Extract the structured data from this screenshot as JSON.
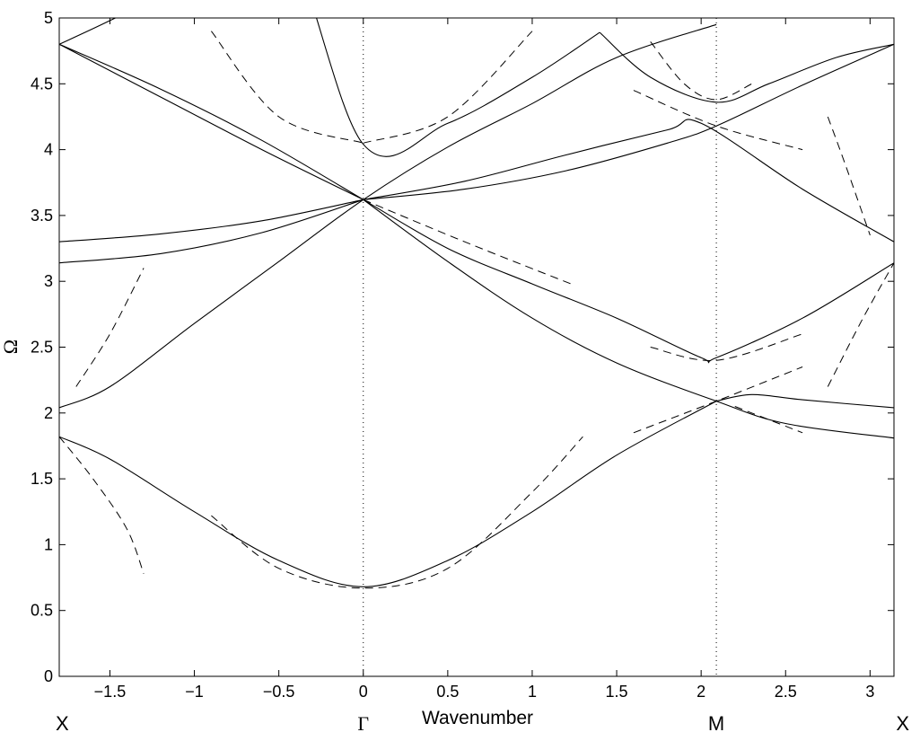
{
  "chart_data": {
    "type": "line",
    "title": "",
    "xlabel": "Wavenumber",
    "ylabel": "Ω",
    "xlim": [
      -1.8,
      3.1416
    ],
    "ylim": [
      0,
      5
    ],
    "grid": false,
    "x_ticks": [
      "−1.5",
      "−1",
      "−0.5",
      "0",
      "0.5",
      "1",
      "1.5",
      "2",
      "2.5",
      "3"
    ],
    "x_tick_values": [
      -1.5,
      -1,
      -0.5,
      0,
      0.5,
      1,
      1.5,
      2,
      2.5,
      3
    ],
    "y_ticks": [
      "0",
      "0.5",
      "1",
      "1.5",
      "2",
      "2.5",
      "3",
      "3.5",
      "4",
      "4.5",
      "5"
    ],
    "y_tick_values": [
      0,
      0.5,
      1,
      1.5,
      2,
      2.5,
      3,
      3.5,
      4,
      4.5,
      5
    ],
    "symmetry_points": [
      {
        "label": "X",
        "x": -1.8
      },
      {
        "label": "Γ",
        "x": 0
      },
      {
        "label": "M",
        "x": 2.09
      },
      {
        "label": "X",
        "x": 3.1416
      }
    ],
    "vertical_markers": [
      0,
      2.09
    ],
    "solid_bands": [
      {
        "x": [
          -1.8,
          -1.5,
          -1.0,
          -0.5,
          0,
          0.5,
          1.0,
          1.5,
          2.09
        ],
        "y": [
          1.82,
          1.65,
          1.25,
          0.88,
          0.68,
          0.88,
          1.25,
          1.68,
          2.09
        ]
      },
      {
        "x": [
          2.09,
          2.3,
          2.6,
          3.1416
        ],
        "y": [
          2.09,
          2.14,
          2.1,
          2.04
        ]
      },
      {
        "x": [
          -1.8,
          -1.5,
          -1.0,
          -0.5,
          0,
          0.5,
          1.0,
          1.5,
          2.09
        ],
        "y": [
          2.04,
          2.2,
          2.68,
          3.15,
          3.62,
          4.02,
          4.35,
          4.7,
          4.95
        ]
      },
      {
        "x": [
          0,
          0.5,
          1.0,
          1.5,
          2.0,
          2.09,
          2.6,
          3.1416
        ],
        "y": [
          3.62,
          3.25,
          2.98,
          2.72,
          2.42,
          2.42,
          2.72,
          3.14
        ]
      },
      {
        "x": [
          0,
          0.5,
          1.0,
          1.5,
          2.09,
          2.5,
          3.1416
        ],
        "y": [
          3.62,
          3.15,
          2.72,
          2.38,
          2.09,
          1.92,
          1.81
        ]
      },
      {
        "x": [
          -1.8,
          -1.2,
          -0.6,
          0
        ],
        "y": [
          3.14,
          3.21,
          3.37,
          3.62
        ]
      },
      {
        "x": [
          -1.8,
          -1.2,
          -0.6,
          0
        ],
        "y": [
          3.3,
          3.36,
          3.46,
          3.62
        ]
      },
      {
        "x": [
          0,
          0.6,
          1.2,
          1.8,
          2.09,
          2.6,
          3.1416
        ],
        "y": [
          3.62,
          3.7,
          3.84,
          4.05,
          4.18,
          4.49,
          4.8
        ]
      },
      {
        "x": [
          0,
          0.6,
          1.2,
          1.8,
          2.0,
          2.6,
          3.1416
        ],
        "y": [
          3.62,
          3.76,
          3.96,
          4.15,
          4.2,
          3.7,
          3.3
        ]
      },
      {
        "x": [
          -1.8,
          -1.2,
          -0.6,
          0
        ],
        "y": [
          4.8,
          4.46,
          4.07,
          3.62
        ]
      },
      {
        "x": [
          -1.8,
          -1.2,
          -0.6,
          0
        ],
        "y": [
          4.8,
          4.4,
          4.0,
          3.62
        ]
      },
      {
        "x": [
          -1.8,
          -1.5,
          -1.0,
          -0.5,
          0,
          0.5,
          1.0,
          1.4
        ],
        "y": [
          4.8,
          4.98,
          5.3,
          5.7,
          4.04,
          4.2,
          4.55,
          4.89
        ]
      },
      {
        "x": [
          1.4,
          1.7,
          2.09,
          2.4,
          2.8,
          3.1416
        ],
        "y": [
          4.89,
          4.55,
          4.36,
          4.5,
          4.7,
          4.8
        ]
      }
    ],
    "dashed_bands": [
      {
        "x": [
          -1.8,
          -1.6,
          -1.4,
          -1.3
        ],
        "y": [
          1.82,
          1.5,
          1.12,
          0.78
        ]
      },
      {
        "x": [
          -1.7,
          -1.5,
          -1.3
        ],
        "y": [
          2.2,
          2.6,
          3.1
        ]
      },
      {
        "x": [
          -0.9,
          -0.5,
          0,
          0.5,
          1.0,
          1.3
        ],
        "y": [
          1.22,
          0.82,
          0.67,
          0.82,
          1.4,
          1.82
        ]
      },
      {
        "x": [
          -0.9,
          -0.5,
          0
        ],
        "y": [
          4.9,
          4.25,
          4.05
        ]
      },
      {
        "x": [
          0,
          0.5,
          1.0
        ],
        "y": [
          4.05,
          4.25,
          4.9
        ]
      },
      {
        "x": [
          0,
          0.6,
          1.25
        ],
        "y": [
          3.62,
          3.3,
          2.97
        ]
      },
      {
        "x": [
          1.7,
          1.9,
          2.09,
          2.3
        ],
        "y": [
          4.82,
          4.5,
          4.38,
          4.5
        ]
      },
      {
        "x": [
          1.6,
          2.09,
          2.6
        ],
        "y": [
          4.45,
          4.18,
          4.0
        ]
      },
      {
        "x": [
          2.75,
          2.85,
          3.0
        ],
        "y": [
          4.25,
          3.9,
          3.35
        ]
      },
      {
        "x": [
          1.7,
          2.09,
          2.6
        ],
        "y": [
          2.5,
          2.4,
          2.6
        ]
      },
      {
        "x": [
          2.75,
          2.95,
          3.1416
        ],
        "y": [
          2.2,
          2.7,
          3.14
        ]
      },
      {
        "x": [
          1.6,
          2.09,
          2.6
        ],
        "y": [
          1.85,
          2.09,
          2.35
        ]
      },
      {
        "x": [
          2.2,
          2.6
        ],
        "y": [
          2.05,
          1.85
        ]
      }
    ]
  }
}
